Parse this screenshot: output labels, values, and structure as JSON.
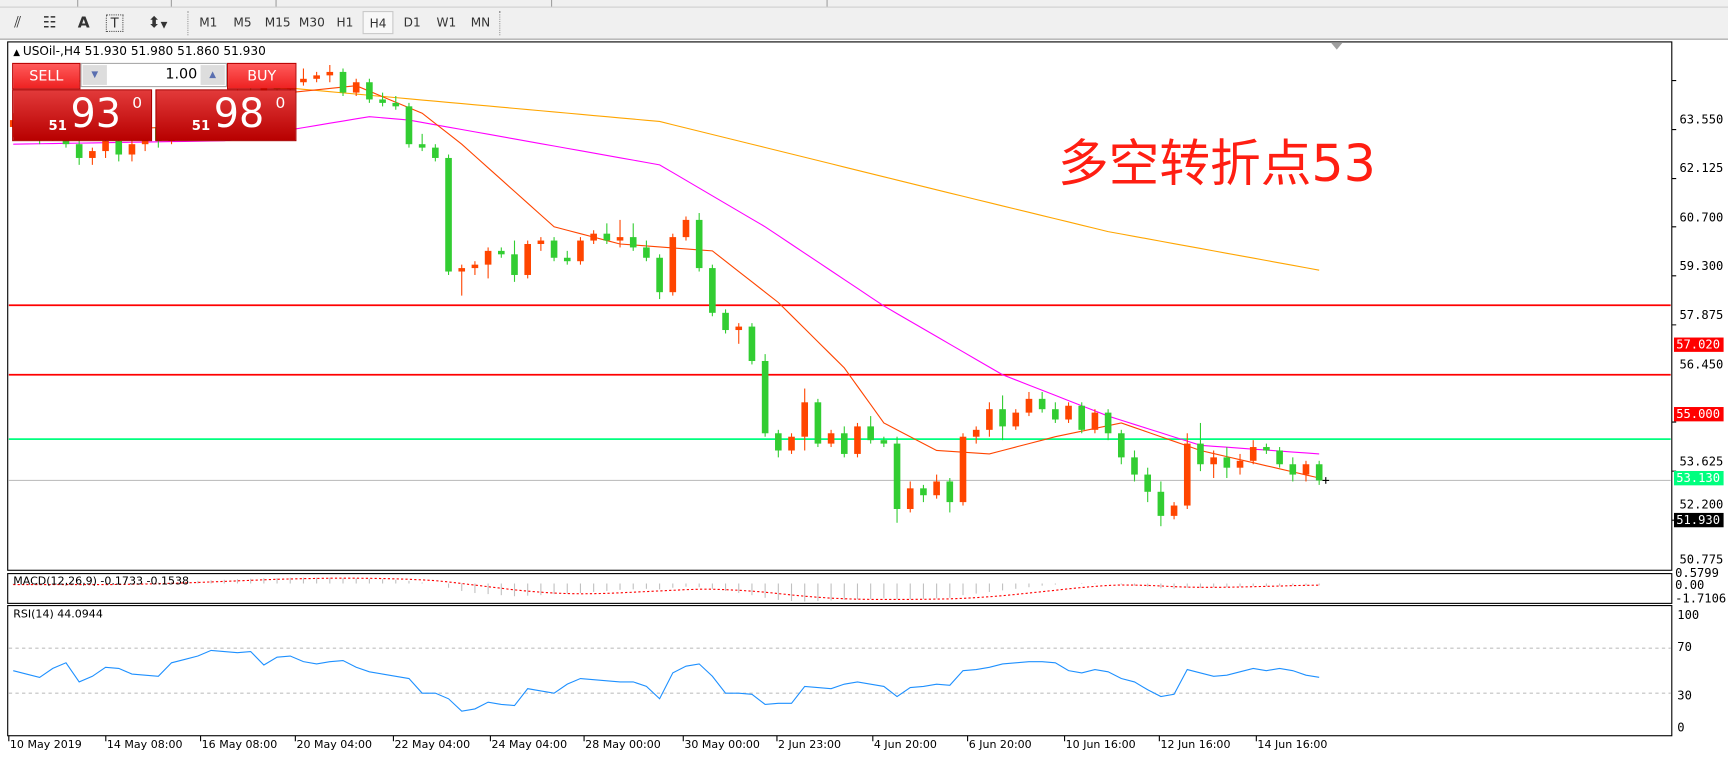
{
  "toolbar": {
    "icons": [
      "equidistant-channel-icon",
      "fibonacci-icon",
      "text-icon",
      "text-label-icon",
      "arrows-icon"
    ],
    "icon_glyphs": [
      "⫽",
      "☷",
      "A",
      "T",
      "⬍"
    ],
    "timeframes": [
      "M1",
      "M5",
      "M15",
      "M30",
      "H1",
      "H4",
      "D1",
      "W1",
      "MN"
    ],
    "active_timeframe": "H4"
  },
  "chart": {
    "header": "USOil-,H4  51.930 51.980 51.860 51.930",
    "annotation": "多空转折点53",
    "colors": {
      "up": "#ff4500",
      "down": "#32cd32",
      "ma_fast": "#ff4500",
      "ma_mid": "#ff00ff",
      "ma_slow": "#ffa500",
      "level_red": "#ff0000",
      "level_green": "#00ff7f",
      "rsi": "#1e90ff",
      "macd_signal": "#ff0000",
      "macd_hist": "#c0c0c0"
    }
  },
  "trade_panel": {
    "sell_label": "SELL",
    "buy_label": "BUY",
    "lot": "1.00",
    "sell_price": {
      "prefix": "51",
      "main": "93",
      "sup": "0"
    },
    "buy_price": {
      "prefix": "51",
      "main": "98",
      "sup": "0"
    }
  },
  "price_axis": [
    "63.550",
    "62.125",
    "60.700",
    "59.300",
    "57.875",
    "56.450",
    "53.625",
    "52.200",
    "50.775"
  ],
  "levels": [
    {
      "label": "57.020",
      "value": 57.02,
      "color": "#ff0000"
    },
    {
      "label": "55.000",
      "value": 55.0,
      "color": "#ff0000"
    },
    {
      "label": "53.130",
      "value": 53.13,
      "color": "#00ff7f"
    },
    {
      "label": "51.930",
      "value": 51.93,
      "color": "#000000"
    }
  ],
  "macd": {
    "label": "MACD(12,26,9) -0.1733 -0.1538",
    "axis": [
      "0.5799",
      "0.00",
      "-1.7106"
    ]
  },
  "rsi": {
    "label": "RSI(14) 44.0944",
    "axis": [
      "100",
      "70",
      "30",
      "0"
    ]
  },
  "time_axis": [
    "10 May 2019",
    "14 May 08:00",
    "16 May 08:00",
    "20 May 04:00",
    "22 May 04:00",
    "24 May 04:00",
    "28 May 00:00",
    "30 May 00:00",
    "2 Jun 23:00",
    "4 Jun 20:00",
    "6 Jun 20:00",
    "10 Jun 16:00",
    "12 Jun 16:00",
    "14 Jun 16:00"
  ],
  "chart_data": {
    "type": "candlestick",
    "ylim": [
      49.32,
      64.67
    ],
    "candles_ohlc": [
      [
        62.2,
        62.6,
        61.9,
        62.4
      ],
      [
        62.4,
        62.5,
        62.0,
        62.1
      ],
      [
        62.1,
        62.3,
        61.7,
        61.9
      ],
      [
        61.9,
        62.4,
        61.8,
        62.3
      ],
      [
        62.3,
        62.5,
        61.6,
        61.7
      ],
      [
        61.7,
        62.0,
        61.1,
        61.3
      ],
      [
        61.3,
        61.6,
        61.1,
        61.5
      ],
      [
        61.5,
        62.0,
        61.3,
        61.8
      ],
      [
        61.8,
        62.1,
        61.2,
        61.4
      ],
      [
        61.4,
        61.9,
        61.2,
        61.7
      ],
      [
        61.7,
        62.4,
        61.5,
        62.2
      ],
      [
        62.2,
        62.3,
        61.6,
        61.8
      ],
      [
        61.8,
        62.5,
        61.7,
        62.3
      ],
      [
        62.3,
        62.8,
        62.1,
        62.6
      ],
      [
        62.6,
        62.9,
        62.3,
        62.5
      ],
      [
        62.5,
        63.0,
        62.4,
        62.9
      ],
      [
        62.9,
        63.1,
        62.6,
        62.8
      ],
      [
        62.8,
        63.3,
        62.7,
        63.2
      ],
      [
        63.2,
        63.5,
        63.0,
        63.1
      ],
      [
        63.1,
        63.7,
        63.0,
        63.6
      ],
      [
        63.6,
        63.8,
        63.2,
        63.3
      ],
      [
        63.3,
        63.7,
        62.9,
        63.5
      ],
      [
        63.5,
        63.9,
        63.4,
        63.6
      ],
      [
        63.6,
        63.8,
        63.5,
        63.7
      ],
      [
        63.7,
        64.0,
        63.5,
        63.8
      ],
      [
        63.8,
        63.9,
        63.1,
        63.2
      ],
      [
        63.2,
        63.6,
        63.1,
        63.5
      ],
      [
        63.5,
        63.6,
        62.9,
        63.0
      ],
      [
        63.0,
        63.2,
        62.8,
        62.9
      ],
      [
        62.9,
        63.1,
        62.7,
        62.8
      ],
      [
        62.8,
        62.9,
        61.6,
        61.7
      ],
      [
        61.7,
        62.0,
        61.5,
        61.6
      ],
      [
        61.6,
        61.7,
        61.2,
        61.3
      ],
      [
        61.3,
        61.4,
        57.9,
        58.0
      ],
      [
        58.0,
        58.2,
        57.3,
        58.1
      ],
      [
        58.1,
        58.3,
        57.9,
        58.2
      ],
      [
        58.2,
        58.7,
        57.8,
        58.6
      ],
      [
        58.6,
        58.7,
        58.4,
        58.5
      ],
      [
        58.5,
        58.9,
        57.7,
        57.9
      ],
      [
        57.9,
        58.9,
        57.8,
        58.8
      ],
      [
        58.8,
        59.0,
        58.6,
        58.9
      ],
      [
        58.9,
        59.0,
        58.3,
        58.4
      ],
      [
        58.4,
        58.6,
        58.2,
        58.3
      ],
      [
        58.3,
        59.0,
        58.2,
        58.9
      ],
      [
        58.9,
        59.2,
        58.8,
        59.1
      ],
      [
        59.1,
        59.4,
        58.8,
        58.9
      ],
      [
        58.9,
        59.5,
        58.7,
        59.0
      ],
      [
        59.0,
        59.4,
        58.6,
        58.7
      ],
      [
        58.7,
        58.9,
        58.3,
        58.4
      ],
      [
        58.4,
        58.5,
        57.2,
        57.4
      ],
      [
        57.4,
        59.1,
        57.3,
        59.0
      ],
      [
        59.0,
        59.6,
        58.9,
        59.5
      ],
      [
        59.5,
        59.7,
        58.0,
        58.1
      ],
      [
        58.1,
        58.2,
        56.7,
        56.8
      ],
      [
        56.8,
        56.9,
        56.2,
        56.3
      ],
      [
        56.3,
        56.5,
        55.9,
        56.4
      ],
      [
        56.4,
        56.5,
        55.3,
        55.4
      ],
      [
        55.4,
        55.6,
        53.2,
        53.3
      ],
      [
        53.3,
        53.4,
        52.6,
        52.8
      ],
      [
        52.8,
        53.3,
        52.7,
        53.2
      ],
      [
        53.2,
        54.6,
        52.8,
        54.2
      ],
      [
        54.2,
        54.3,
        52.9,
        53.0
      ],
      [
        53.0,
        53.4,
        52.9,
        53.3
      ],
      [
        53.3,
        53.5,
        52.6,
        52.7
      ],
      [
        52.7,
        53.6,
        52.6,
        53.5
      ],
      [
        53.5,
        53.8,
        53.0,
        53.1
      ],
      [
        53.1,
        53.2,
        52.9,
        53.0
      ],
      [
        53.0,
        53.2,
        50.7,
        51.1
      ],
      [
        51.1,
        51.9,
        51.0,
        51.7
      ],
      [
        51.7,
        51.8,
        51.3,
        51.5
      ],
      [
        51.5,
        52.1,
        51.4,
        51.9
      ],
      [
        51.9,
        52.0,
        51.0,
        51.3
      ],
      [
        51.3,
        53.3,
        51.2,
        53.2
      ],
      [
        53.2,
        53.5,
        53.0,
        53.4
      ],
      [
        53.4,
        54.2,
        53.2,
        54.0
      ],
      [
        54.0,
        54.4,
        53.1,
        53.5
      ],
      [
        53.5,
        54.0,
        53.4,
        53.9
      ],
      [
        53.9,
        54.5,
        53.8,
        54.3
      ],
      [
        54.3,
        54.5,
        53.9,
        54.0
      ],
      [
        54.0,
        54.2,
        53.6,
        53.7
      ],
      [
        53.7,
        54.2,
        53.6,
        54.1
      ],
      [
        54.1,
        54.2,
        53.3,
        53.4
      ],
      [
        53.4,
        54.0,
        53.3,
        53.9
      ],
      [
        53.9,
        54.0,
        53.1,
        53.3
      ],
      [
        53.3,
        53.4,
        52.4,
        52.6
      ],
      [
        52.6,
        52.8,
        51.9,
        52.1
      ],
      [
        52.1,
        52.3,
        51.3,
        51.6
      ],
      [
        51.6,
        51.9,
        50.6,
        50.9
      ],
      [
        50.9,
        51.3,
        50.8,
        51.2
      ],
      [
        51.2,
        53.3,
        51.1,
        53.0
      ],
      [
        53.0,
        53.6,
        52.2,
        52.4
      ],
      [
        52.4,
        52.8,
        52.0,
        52.6
      ],
      [
        52.6,
        52.9,
        52.0,
        52.3
      ],
      [
        52.3,
        52.7,
        52.1,
        52.5
      ],
      [
        52.5,
        53.1,
        52.4,
        52.9
      ],
      [
        52.9,
        53.0,
        52.7,
        52.8
      ],
      [
        52.8,
        52.9,
        52.3,
        52.4
      ],
      [
        52.4,
        52.6,
        51.9,
        52.1
      ],
      [
        52.1,
        52.5,
        51.9,
        52.4
      ],
      [
        52.4,
        52.5,
        51.8,
        51.93
      ]
    ],
    "ma_fast": {
      "bars": [
        0,
        12,
        21,
        26,
        31,
        34,
        41,
        46,
        53,
        58,
        63,
        66,
        70,
        74,
        79,
        84,
        90,
        99
      ],
      "values": [
        62.0,
        62.2,
        63.2,
        63.4,
        62.6,
        61.7,
        59.3,
        58.8,
        58.6,
        57.1,
        55.2,
        53.6,
        52.8,
        52.7,
        53.2,
        53.6,
        52.8,
        52.0
      ]
    },
    "ma_mid": {
      "bars": [
        0,
        16,
        27,
        30,
        49,
        57,
        66,
        75,
        83,
        90,
        99
      ],
      "values": [
        61.7,
        61.8,
        62.5,
        62.4,
        61.1,
        59.3,
        57.0,
        55.0,
        53.8,
        52.95,
        52.7
      ]
    },
    "ma_slow": {
      "bars": [
        0,
        21,
        49,
        71,
        83,
        99
      ],
      "values": [
        63.6,
        63.33,
        62.36,
        60.28,
        59.16,
        58.04
      ]
    },
    "macd_hist": [
      -0.1,
      -0.1,
      -0.15,
      -0.1,
      -0.05,
      -0.1,
      -0.15,
      -0.1,
      -0.05,
      0,
      0.05,
      0.1,
      0.15,
      0.2,
      0.25,
      0.3,
      0.35,
      0.4,
      0.45,
      0.5,
      0.5,
      0.55,
      0.55,
      0.55,
      0.55,
      0.5,
      0.5,
      0.45,
      0.4,
      0.35,
      0.25,
      0.1,
      0.0,
      -0.4,
      -0.7,
      -0.9,
      -1.0,
      -1.1,
      -1.2,
      -1.15,
      -1.1,
      -1.0,
      -0.95,
      -0.9,
      -0.8,
      -0.7,
      -0.6,
      -0.55,
      -0.5,
      -0.55,
      -0.4,
      -0.3,
      -0.35,
      -0.5,
      -0.7,
      -0.9,
      -1.1,
      -1.35,
      -1.55,
      -1.65,
      -1.7,
      -1.65,
      -1.6,
      -1.55,
      -1.5,
      -1.45,
      -1.4,
      -1.5,
      -1.5,
      -1.45,
      -1.4,
      -1.35,
      -1.1,
      -0.95,
      -0.8,
      -0.65,
      -0.5,
      -0.35,
      -0.2,
      -0.1,
      0.0,
      0.05,
      0.05,
      0.0,
      -0.1,
      -0.2,
      -0.3,
      -0.45,
      -0.5,
      -0.4,
      -0.4,
      -0.35,
      -0.35,
      -0.3,
      -0.25,
      -0.25,
      -0.2,
      -0.2,
      -0.18,
      -0.1733
    ],
    "macd_signal": [
      -0.1,
      -0.1,
      -0.1,
      -0.1,
      -0.1,
      -0.1,
      -0.1,
      -0.1,
      -0.09,
      -0.07,
      -0.05,
      -0.02,
      0.02,
      0.06,
      0.1,
      0.15,
      0.2,
      0.25,
      0.3,
      0.35,
      0.4,
      0.43,
      0.46,
      0.48,
      0.5,
      0.5,
      0.5,
      0.49,
      0.47,
      0.44,
      0.4,
      0.34,
      0.27,
      0.15,
      0.0,
      -0.15,
      -0.3,
      -0.45,
      -0.6,
      -0.72,
      -0.82,
      -0.9,
      -0.95,
      -0.97,
      -0.96,
      -0.93,
      -0.88,
      -0.82,
      -0.76,
      -0.7,
      -0.64,
      -0.58,
      -0.54,
      -0.54,
      -0.58,
      -0.64,
      -0.72,
      -0.82,
      -0.95,
      -1.08,
      -1.2,
      -1.3,
      -1.38,
      -1.44,
      -1.48,
      -1.5,
      -1.5,
      -1.5,
      -1.5,
      -1.49,
      -1.47,
      -1.45,
      -1.4,
      -1.33,
      -1.25,
      -1.15,
      -1.03,
      -0.9,
      -0.77,
      -0.64,
      -0.5,
      -0.38,
      -0.27,
      -0.18,
      -0.14,
      -0.15,
      -0.18,
      -0.23,
      -0.3,
      -0.34,
      -0.36,
      -0.36,
      -0.35,
      -0.33,
      -0.3,
      -0.27,
      -0.24,
      -0.2,
      -0.17,
      -0.1538
    ],
    "rsi": [
      50,
      47,
      44,
      52,
      57,
      40,
      45,
      53,
      52,
      47,
      46,
      45,
      57,
      60,
      63,
      68,
      67,
      66,
      67,
      55,
      62,
      63,
      58,
      56,
      58,
      59,
      53,
      49,
      47,
      45,
      43,
      30,
      30,
      25,
      14,
      16,
      22,
      20,
      19,
      34,
      32,
      30,
      38,
      43,
      42,
      41,
      40,
      40,
      36,
      25,
      48,
      54,
      56,
      45,
      30,
      30,
      29,
      20,
      21,
      21,
      36,
      35,
      34,
      38,
      40,
      38,
      36,
      27,
      35,
      36,
      38,
      37,
      50,
      51,
      53,
      56,
      57,
      58,
      58,
      57,
      50,
      48,
      51,
      49,
      43,
      40,
      33,
      27,
      29,
      51,
      48,
      45,
      46,
      49,
      52,
      50,
      52,
      50,
      46,
      44.0944
    ]
  }
}
